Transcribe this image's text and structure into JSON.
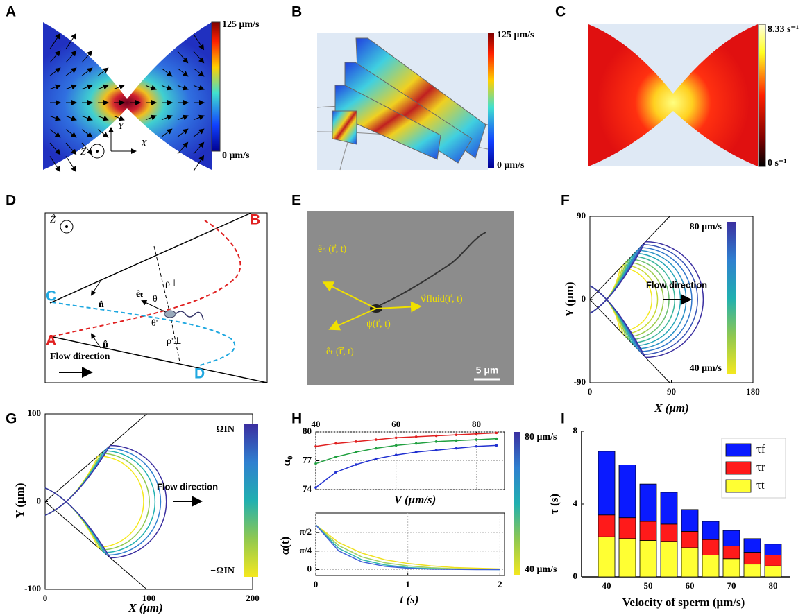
{
  "panel_labels": [
    "A",
    "B",
    "C",
    "D",
    "E",
    "F",
    "G",
    "H",
    "I"
  ],
  "panel_a": {
    "colorbar_max": "125 μm/s",
    "colorbar_min": "0 μm/s",
    "axis_y": "Y",
    "axis_x": "X",
    "axis_z": "Z"
  },
  "panel_b": {
    "colorbar_max": "125 μm/s",
    "colorbar_min": "0 μm/s"
  },
  "panel_c": {
    "colorbar_max": "8.33 s⁻¹",
    "colorbar_min": "0 s⁻¹"
  },
  "panel_d": {
    "z_axis": "Ẑ",
    "point_b": "B",
    "point_c": "C",
    "point_a": "A",
    "point_d": "D",
    "normal_top": "n̂",
    "normal_bottom": "n̂",
    "tangent": "êₜ",
    "theta": "θ",
    "theta_prime": "θ'",
    "rho": "ρ⊥",
    "rho_prime": "ρ'⊥",
    "flow": "Flow direction"
  },
  "panel_e": {
    "normal": "êₙ (r⃗, t)",
    "angle": "ψ(r⃗, t)",
    "fluid": "v⃗fluid(r⃗, t)",
    "tangent": "êₜ (r⃗, t)",
    "scale": "5 μm"
  },
  "chart_data": [
    {
      "type": "trajectory",
      "xlabel": "X (μm)",
      "ylabel": "Y (μm)",
      "xlim": [
        0,
        180
      ],
      "xticks": [
        0,
        90,
        180
      ],
      "ylim": [
        -90,
        90
      ],
      "yticks": [
        -90,
        0,
        90
      ],
      "colorbar_labels": [
        "80 μm/s",
        "40 μm/s"
      ],
      "annotation": "Flow direction"
    },
    {
      "type": "trajectory",
      "xlabel": "X (μm)",
      "ylabel": "Y (μm)",
      "xlim": [
        0,
        200
      ],
      "xticks": [
        0,
        100,
        200
      ],
      "ylim": [
        -100,
        100
      ],
      "yticks": [
        -100,
        0,
        100
      ],
      "colorbar_labels": [
        "ΩIN",
        "−ΩIN"
      ],
      "annotation": "Flow direction"
    },
    {
      "type": "line",
      "xlabel": "V (μm/s)",
      "ylabel": "α₀",
      "x": [
        40,
        45,
        50,
        55,
        60,
        65,
        70,
        75,
        80,
        85
      ],
      "xlim": [
        40,
        87
      ],
      "xticks": [
        40,
        60,
        80
      ],
      "ylim": [
        74,
        80
      ],
      "yticks": [
        74,
        77,
        80
      ],
      "grid": true,
      "colorbar_labels": [
        "80 μm/s",
        "40 μm/s"
      ],
      "series": [
        {
          "color": "#e02020",
          "values": [
            78.5,
            78.8,
            79.0,
            79.2,
            79.4,
            79.5,
            79.6,
            79.7,
            79.8,
            79.9
          ]
        },
        {
          "color": "#20a040",
          "values": [
            76.7,
            77.4,
            77.9,
            78.3,
            78.6,
            78.8,
            79.0,
            79.1,
            79.2,
            79.3
          ]
        },
        {
          "color": "#2030d0",
          "values": [
            74.2,
            75.8,
            76.6,
            77.2,
            77.6,
            77.9,
            78.1,
            78.3,
            78.5,
            78.6
          ]
        }
      ]
    },
    {
      "type": "line",
      "xlabel": "t (s)",
      "ylabel": "α(t)",
      "x": [
        0,
        0.25,
        0.5,
        0.75,
        1,
        1.25,
        1.5,
        1.75,
        2
      ],
      "xlim": [
        0,
        2.05
      ],
      "xticks": [
        0,
        1,
        2
      ],
      "ylim": [
        -0.25,
        2.4
      ],
      "yticks": [
        0,
        {
          "value": 0.7854,
          "label": "π/4"
        },
        {
          "value": 1.5708,
          "label": "π/2"
        }
      ],
      "grid": true,
      "series": [
        {
          "color": "#f0e020",
          "values": [
            1.9,
            1.15,
            0.7,
            0.42,
            0.26,
            0.16,
            0.09,
            0.06,
            0.03
          ]
        },
        {
          "color": "#a0d060",
          "values": [
            1.9,
            1.02,
            0.54,
            0.29,
            0.16,
            0.08,
            0.04,
            0.02,
            0.01
          ]
        },
        {
          "color": "#30b8b0",
          "values": [
            1.9,
            0.9,
            0.42,
            0.2,
            0.09,
            0.04,
            0.02,
            0.01,
            0
          ]
        },
        {
          "color": "#4060d8",
          "values": [
            1.9,
            0.79,
            0.33,
            0.14,
            0.06,
            0.02,
            0.01,
            0,
            0
          ]
        }
      ]
    },
    {
      "type": "stacked_bar",
      "xlabel": "Velocity of sperm (μm/s)",
      "ylabel": "τ (s)",
      "x": [
        40,
        45,
        50,
        55,
        60,
        65,
        70,
        75,
        80
      ],
      "xlim": [
        34,
        84
      ],
      "xticks": [
        40,
        50,
        60,
        70,
        80
      ],
      "ylim": [
        0,
        8
      ],
      "yticks": [
        0,
        4,
        8
      ],
      "series": [
        {
          "name": "τt",
          "color": "#ffff33",
          "values": [
            2.2,
            2.1,
            2.0,
            1.95,
            1.6,
            1.2,
            1.0,
            0.7,
            0.6
          ]
        },
        {
          "name": "τr",
          "color": "#ff1a1a",
          "values": [
            1.2,
            1.15,
            1.05,
            0.95,
            0.9,
            0.85,
            0.7,
            0.65,
            0.6
          ]
        },
        {
          "name": "τf",
          "color": "#0a1aff",
          "values": [
            3.5,
            2.9,
            2.05,
            1.75,
            1.2,
            1.0,
            0.85,
            0.75,
            0.6
          ]
        }
      ]
    }
  ]
}
